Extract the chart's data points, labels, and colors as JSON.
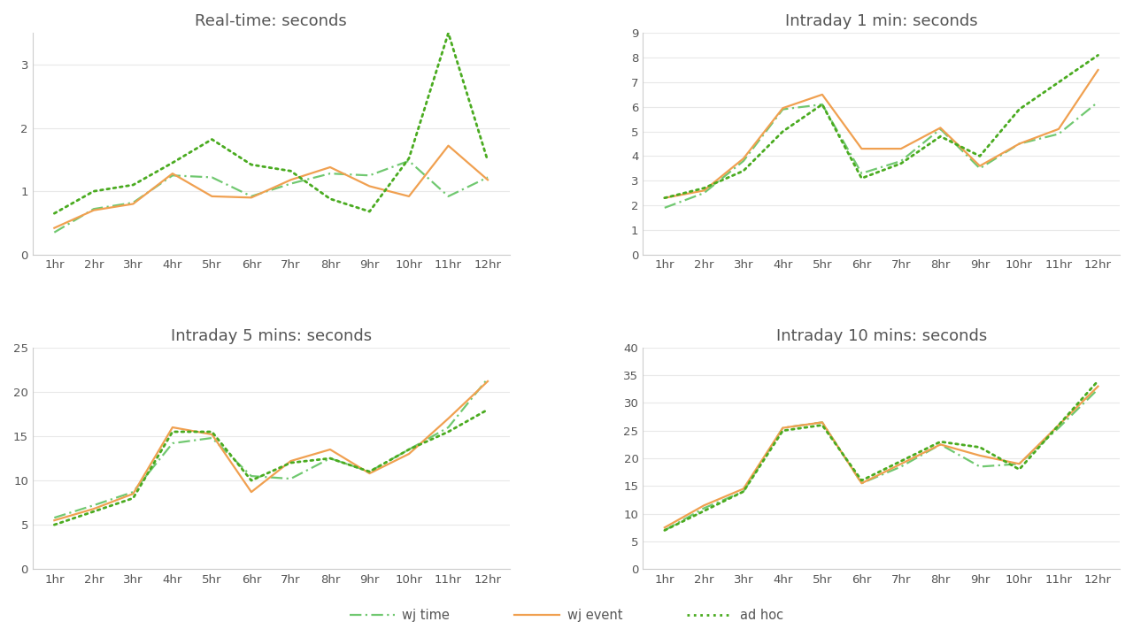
{
  "x_labels": [
    "1hr",
    "2hr",
    "3hr",
    "4hr",
    "5hr",
    "6hr",
    "7hr",
    "8hr",
    "9hr",
    "10hr",
    "11hr",
    "12hr"
  ],
  "subplots": [
    {
      "title": "Real-time: seconds",
      "ylim": [
        0,
        3.5
      ],
      "yticks": [
        0,
        1,
        2,
        3
      ],
      "wj_time": [
        0.35,
        0.72,
        0.82,
        1.25,
        1.22,
        0.92,
        1.12,
        1.28,
        1.25,
        1.48,
        0.92,
        1.22
      ],
      "wj_event": [
        0.42,
        0.7,
        0.8,
        1.28,
        0.92,
        0.9,
        1.18,
        1.38,
        1.08,
        0.92,
        1.72,
        1.18
      ],
      "ad_hoc": [
        0.65,
        1.0,
        1.1,
        1.45,
        1.82,
        1.42,
        1.32,
        0.88,
        0.68,
        1.52,
        3.5,
        1.48
      ]
    },
    {
      "title": "Intraday 1 min: seconds",
      "ylim": [
        0,
        9
      ],
      "yticks": [
        0,
        1,
        2,
        3,
        4,
        5,
        6,
        7,
        8,
        9
      ],
      "wj_time": [
        1.9,
        2.5,
        3.8,
        5.9,
        6.1,
        3.3,
        3.8,
        5.1,
        3.5,
        4.5,
        4.9,
        6.2
      ],
      "wj_event": [
        2.3,
        2.6,
        3.9,
        5.95,
        6.5,
        4.3,
        4.3,
        5.15,
        3.6,
        4.5,
        5.1,
        7.5
      ],
      "ad_hoc": [
        2.3,
        2.7,
        3.4,
        5.0,
        6.1,
        3.1,
        3.7,
        4.8,
        4.0,
        5.9,
        7.0,
        8.1
      ]
    },
    {
      "title": "Intraday 5 mins: seconds",
      "ylim": [
        0,
        25
      ],
      "yticks": [
        0,
        5,
        10,
        15,
        20,
        25
      ],
      "wj_time": [
        5.8,
        7.2,
        8.7,
        14.2,
        14.8,
        10.5,
        10.2,
        12.5,
        11.0,
        13.5,
        16.0,
        21.5
      ],
      "wj_event": [
        5.5,
        6.8,
        8.5,
        16.0,
        15.2,
        8.7,
        12.2,
        13.5,
        10.8,
        13.0,
        17.0,
        21.2
      ],
      "ad_hoc": [
        5.0,
        6.5,
        8.0,
        15.5,
        15.5,
        10.0,
        12.0,
        12.5,
        11.0,
        13.5,
        15.5,
        18.0
      ]
    },
    {
      "title": "Intraday 10 mins: seconds",
      "ylim": [
        0,
        40
      ],
      "yticks": [
        0,
        5,
        10,
        15,
        20,
        25,
        30,
        35,
        40
      ],
      "wj_time": [
        7.0,
        11.0,
        14.0,
        25.5,
        26.5,
        15.5,
        18.5,
        22.5,
        18.5,
        19.0,
        25.5,
        32.5
      ],
      "wj_event": [
        7.5,
        11.5,
        14.5,
        25.5,
        26.5,
        15.5,
        19.0,
        22.5,
        20.5,
        19.0,
        26.0,
        33.0
      ],
      "ad_hoc": [
        7.0,
        10.5,
        14.0,
        25.0,
        26.0,
        16.0,
        19.5,
        23.0,
        22.0,
        18.0,
        26.0,
        34.0
      ]
    }
  ],
  "colors": {
    "wj_time": "#70c870",
    "wj_event": "#f0a050",
    "ad_hoc": "#4aab20"
  },
  "background_color": "#ffffff",
  "grid_color": "#e8e8e8",
  "title_fontsize": 13,
  "tick_fontsize": 9.5,
  "legend_fontsize": 10.5
}
